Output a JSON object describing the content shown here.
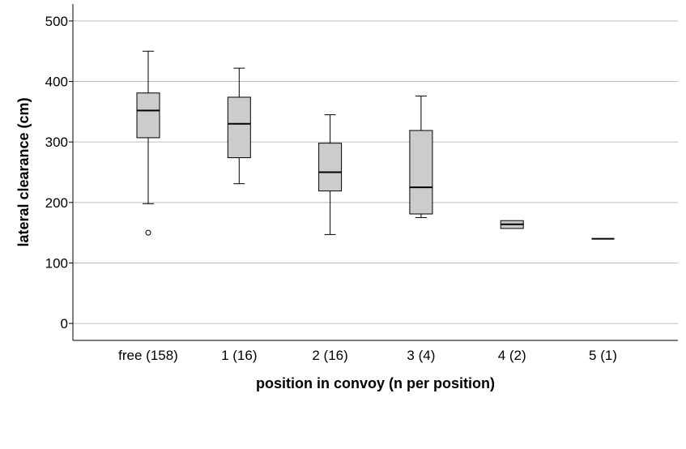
{
  "chart_data": {
    "type": "boxplot",
    "title": "",
    "xlabel": "position in convoy (n per position)",
    "ylabel": "lateral clearance (cm)",
    "ylim": [
      -28,
      528
    ],
    "yticks": [
      0,
      100,
      200,
      300,
      400,
      500
    ],
    "grid": "horizontal",
    "box_fill": "#cccccc",
    "categories": [
      "free (158)",
      "1 (16)",
      "2 (16)",
      "3 (4)",
      "4 (2)",
      "5 (1)"
    ],
    "boxes": [
      {
        "whisker_low": 198,
        "q1": 307,
        "median": 352,
        "q3": 381,
        "whisker_high": 450,
        "outliers": [
          150
        ]
      },
      {
        "whisker_low": 231,
        "q1": 274,
        "median": 330,
        "q3": 374,
        "whisker_high": 422,
        "outliers": []
      },
      {
        "whisker_low": 147,
        "q1": 219,
        "median": 250,
        "q3": 298,
        "whisker_high": 345,
        "outliers": []
      },
      {
        "whisker_low": 175,
        "q1": 181,
        "median": 225,
        "q3": 319,
        "whisker_high": 376,
        "outliers": []
      },
      {
        "whisker_low": 157,
        "q1": 157,
        "median": 164,
        "q3": 170,
        "whisker_high": 170,
        "outliers": []
      },
      {
        "whisker_low": 140,
        "q1": 140,
        "median": 140,
        "q3": 140,
        "whisker_high": 140,
        "outliers": []
      }
    ]
  }
}
